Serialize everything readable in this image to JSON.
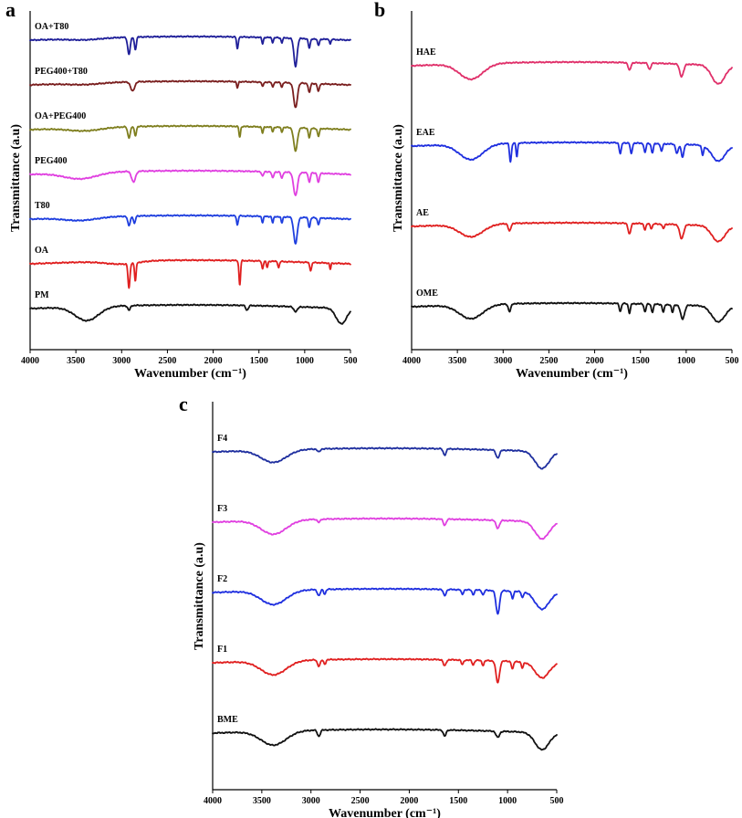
{
  "chart_data": [
    {
      "panel": "a",
      "type": "line",
      "xlabel": "Wavenumber (cm⁻¹)",
      "ylabel": "Transmittance (a.u)",
      "xlim": [
        4000,
        500
      ],
      "xticks": [
        4000,
        3500,
        3000,
        2500,
        2000,
        1500,
        1000,
        500
      ],
      "series": [
        {
          "name": "OA+T80",
          "color": "#1f1f99",
          "baseline": 6.0,
          "broad": [
            [
              3400,
              0.05,
              250
            ]
          ],
          "peaks": [
            [
              2920,
              0.55,
              20
            ],
            [
              2850,
              0.4,
              15
            ],
            [
              1735,
              0.4,
              12
            ],
            [
              1460,
              0.2,
              12
            ],
            [
              1350,
              0.15,
              12
            ],
            [
              1250,
              0.15,
              12
            ],
            [
              1100,
              0.9,
              25
            ],
            [
              950,
              0.3,
              15
            ],
            [
              850,
              0.2,
              15
            ],
            [
              720,
              0.15,
              10
            ]
          ]
        },
        {
          "name": "PEG400+T80",
          "color": "#7a1f1f",
          "baseline": 5.0,
          "broad": [
            [
              3400,
              0.05,
              250
            ]
          ],
          "peaks": [
            [
              2880,
              0.3,
              30
            ],
            [
              1735,
              0.2,
              12
            ],
            [
              1460,
              0.15,
              12
            ],
            [
              1350,
              0.15,
              12
            ],
            [
              1250,
              0.15,
              12
            ],
            [
              1100,
              0.8,
              28
            ],
            [
              950,
              0.3,
              15
            ],
            [
              850,
              0.25,
              15
            ]
          ]
        },
        {
          "name": "OA+PEG400",
          "color": "#7f7f1f",
          "baseline": 4.0,
          "broad": [
            [
              3400,
              0.1,
              250
            ]
          ],
          "peaks": [
            [
              2920,
              0.35,
              20
            ],
            [
              2850,
              0.3,
              15
            ],
            [
              1710,
              0.35,
              12
            ],
            [
              1460,
              0.2,
              12
            ],
            [
              1350,
              0.15,
              12
            ],
            [
              1250,
              0.15,
              12
            ],
            [
              1100,
              0.75,
              28
            ],
            [
              950,
              0.3,
              15
            ],
            [
              850,
              0.25,
              15
            ]
          ]
        },
        {
          "name": "PEG400",
          "color": "#e040e0",
          "baseline": 3.0,
          "broad": [
            [
              3450,
              0.2,
              250
            ]
          ],
          "peaks": [
            [
              2870,
              0.35,
              30
            ],
            [
              1460,
              0.15,
              15
            ],
            [
              1350,
              0.2,
              15
            ],
            [
              1250,
              0.2,
              15
            ],
            [
              1100,
              0.75,
              30
            ],
            [
              950,
              0.3,
              15
            ],
            [
              850,
              0.3,
              15
            ]
          ]
        },
        {
          "name": "T80",
          "color": "#1f3fdf",
          "baseline": 2.0,
          "broad": [
            [
              3450,
              0.1,
              250
            ]
          ],
          "peaks": [
            [
              2920,
              0.3,
              20
            ],
            [
              2860,
              0.25,
              15
            ],
            [
              1735,
              0.3,
              12
            ],
            [
              1460,
              0.2,
              12
            ],
            [
              1350,
              0.2,
              12
            ],
            [
              1250,
              0.2,
              12
            ],
            [
              1100,
              0.85,
              28
            ],
            [
              950,
              0.3,
              15
            ],
            [
              850,
              0.2,
              15
            ]
          ]
        },
        {
          "name": "OA",
          "color": "#e02020",
          "baseline": 1.0,
          "broad": [
            [
              3000,
              0.1,
              250
            ]
          ],
          "peaks": [
            [
              2920,
              0.8,
              15
            ],
            [
              2850,
              0.6,
              12
            ],
            [
              1710,
              0.8,
              12
            ],
            [
              1460,
              0.25,
              12
            ],
            [
              1410,
              0.2,
              12
            ],
            [
              1285,
              0.2,
              12
            ],
            [
              935,
              0.25,
              15
            ],
            [
              720,
              0.2,
              10
            ]
          ]
        },
        {
          "name": "PM",
          "color": "#111111",
          "baseline": 0.0,
          "broad": [
            [
              3380,
              0.45,
              180
            ],
            [
              600,
              0.5,
              80
            ]
          ],
          "peaks": [
            [
              2920,
              0.15,
              20
            ],
            [
              1630,
              0.15,
              20
            ],
            [
              1100,
              0.15,
              30
            ]
          ]
        }
      ]
    },
    {
      "panel": "b",
      "type": "line",
      "xlabel": "Wavenumber (cm⁻¹)",
      "ylabel": "Transmittance (a.u)",
      "xlim": [
        4000,
        500
      ],
      "xticks": [
        4000,
        3500,
        3000,
        2500,
        2000,
        1500,
        1000,
        500
      ],
      "series": [
        {
          "name": "HAE",
          "color": "#e0306a",
          "baseline": 3.0,
          "broad": [
            [
              3350,
              0.5,
              180
            ],
            [
              650,
              0.6,
              100
            ]
          ],
          "peaks": [
            [
              1620,
              0.25,
              20
            ],
            [
              1400,
              0.2,
              20
            ],
            [
              1050,
              0.4,
              30
            ]
          ]
        },
        {
          "name": "EAE",
          "color": "#1f2fdf",
          "baseline": 2.0,
          "broad": [
            [
              3350,
              0.5,
              180
            ],
            [
              650,
              0.5,
              100
            ]
          ],
          "peaks": [
            [
              2920,
              0.6,
              15
            ],
            [
              2850,
              0.45,
              12
            ],
            [
              1720,
              0.35,
              15
            ],
            [
              1600,
              0.35,
              15
            ],
            [
              1450,
              0.3,
              15
            ],
            [
              1370,
              0.3,
              15
            ],
            [
              1270,
              0.25,
              15
            ],
            [
              1100,
              0.3,
              20
            ],
            [
              1040,
              0.4,
              20
            ],
            [
              820,
              0.3,
              15
            ]
          ]
        },
        {
          "name": "AE",
          "color": "#e02020",
          "baseline": 1.0,
          "broad": [
            [
              3350,
              0.4,
              180
            ],
            [
              650,
              0.5,
              100
            ]
          ],
          "peaks": [
            [
              2930,
              0.25,
              20
            ],
            [
              1620,
              0.35,
              20
            ],
            [
              1450,
              0.2,
              15
            ],
            [
              1380,
              0.15,
              15
            ],
            [
              1250,
              0.15,
              15
            ],
            [
              1050,
              0.45,
              30
            ]
          ]
        },
        {
          "name": "OME",
          "color": "#111111",
          "baseline": 0.0,
          "broad": [
            [
              3350,
              0.45,
              180
            ],
            [
              650,
              0.5,
              100
            ]
          ],
          "peaks": [
            [
              2930,
              0.25,
              20
            ],
            [
              1720,
              0.25,
              15
            ],
            [
              1620,
              0.3,
              15
            ],
            [
              1450,
              0.25,
              15
            ],
            [
              1370,
              0.25,
              15
            ],
            [
              1250,
              0.25,
              15
            ],
            [
              1150,
              0.25,
              15
            ],
            [
              1040,
              0.45,
              30
            ]
          ]
        }
      ]
    },
    {
      "panel": "c",
      "type": "line",
      "xlabel": "Wavenumber (cm⁻¹)",
      "ylabel": "Transmittance (a.u)",
      "xlim": [
        4000,
        500
      ],
      "xticks": [
        4000,
        3500,
        3000,
        2500,
        2000,
        1500,
        1000,
        500
      ],
      "series": [
        {
          "name": "F4",
          "color": "#1f2f9f",
          "baseline": 4.0,
          "broad": [
            [
              3380,
              0.4,
              180
            ],
            [
              650,
              0.55,
              100
            ]
          ],
          "peaks": [
            [
              2920,
              0.1,
              20
            ],
            [
              1640,
              0.2,
              20
            ],
            [
              1100,
              0.25,
              25
            ]
          ]
        },
        {
          "name": "F3",
          "color": "#e040e0",
          "baseline": 3.0,
          "broad": [
            [
              3380,
              0.45,
              180
            ],
            [
              650,
              0.55,
              100
            ]
          ],
          "peaks": [
            [
              2920,
              0.1,
              20
            ],
            [
              1640,
              0.2,
              20
            ],
            [
              1100,
              0.25,
              25
            ]
          ]
        },
        {
          "name": "F2",
          "color": "#1f2fdf",
          "baseline": 2.0,
          "broad": [
            [
              3380,
              0.45,
              180
            ],
            [
              650,
              0.55,
              100
            ]
          ],
          "peaks": [
            [
              2920,
              0.2,
              20
            ],
            [
              2860,
              0.15,
              15
            ],
            [
              1640,
              0.2,
              20
            ],
            [
              1460,
              0.15,
              15
            ],
            [
              1350,
              0.15,
              15
            ],
            [
              1250,
              0.15,
              15
            ],
            [
              1100,
              0.75,
              25
            ],
            [
              950,
              0.25,
              15
            ],
            [
              850,
              0.2,
              15
            ]
          ]
        },
        {
          "name": "F1",
          "color": "#e02020",
          "baseline": 1.0,
          "broad": [
            [
              3380,
              0.45,
              180
            ],
            [
              650,
              0.5,
              100
            ]
          ],
          "peaks": [
            [
              2920,
              0.2,
              20
            ],
            [
              2860,
              0.15,
              15
            ],
            [
              1640,
              0.2,
              20
            ],
            [
              1460,
              0.15,
              15
            ],
            [
              1350,
              0.15,
              15
            ],
            [
              1250,
              0.15,
              15
            ],
            [
              1100,
              0.7,
              25
            ],
            [
              950,
              0.25,
              15
            ],
            [
              850,
              0.2,
              15
            ]
          ]
        },
        {
          "name": "BME",
          "color": "#111111",
          "baseline": 0.0,
          "broad": [
            [
              3380,
              0.45,
              180
            ],
            [
              650,
              0.55,
              100
            ]
          ],
          "peaks": [
            [
              2920,
              0.2,
              20
            ],
            [
              1640,
              0.2,
              20
            ],
            [
              1100,
              0.2,
              25
            ]
          ]
        }
      ]
    }
  ]
}
